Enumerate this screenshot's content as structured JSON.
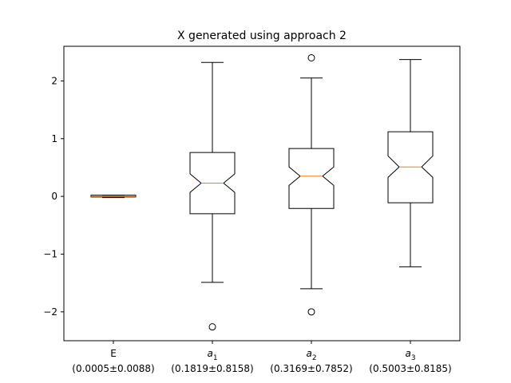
{
  "chart_data": {
    "type": "box",
    "title": "X generated using approach 2",
    "ylim": [
      -2.5,
      2.6
    ],
    "yticks": [
      -2,
      -1,
      0,
      1,
      2
    ],
    "ytick_labels": [
      "−2",
      "−1",
      "0",
      "1",
      "2"
    ],
    "grid": false,
    "notched": true,
    "median_color": "#ff7f0e",
    "box_color": "#000000",
    "categories": [
      {
        "name": "E",
        "sub": "",
        "stat": "(0.0005±0.0088)"
      },
      {
        "name": "a",
        "sub": "1",
        "stat": "(0.1819±0.8158)"
      },
      {
        "name": "a",
        "sub": "2",
        "stat": "(0.3169±0.7852)"
      },
      {
        "name": "a",
        "sub": "3",
        "stat": "(0.5003±0.8185)"
      }
    ],
    "boxes": [
      {
        "whislo": -0.02,
        "q1": -0.01,
        "med": 0.0,
        "q3": 0.02,
        "whishi": 0.02,
        "notch_lo": -0.005,
        "notch_hi": 0.005,
        "fliers": []
      },
      {
        "whislo": -1.49,
        "q1": -0.3,
        "med": 0.23,
        "q3": 0.76,
        "whishi": 2.32,
        "notch_lo": 0.07,
        "notch_hi": 0.39,
        "fliers": [
          -2.26
        ]
      },
      {
        "whislo": -1.6,
        "q1": -0.21,
        "med": 0.35,
        "q3": 0.83,
        "whishi": 2.05,
        "notch_lo": 0.19,
        "notch_hi": 0.51,
        "fliers": [
          2.4,
          -2.0
        ]
      },
      {
        "whislo": -1.22,
        "q1": -0.11,
        "med": 0.51,
        "q3": 1.12,
        "whishi": 2.37,
        "notch_lo": 0.33,
        "notch_hi": 0.7,
        "fliers": []
      }
    ]
  }
}
